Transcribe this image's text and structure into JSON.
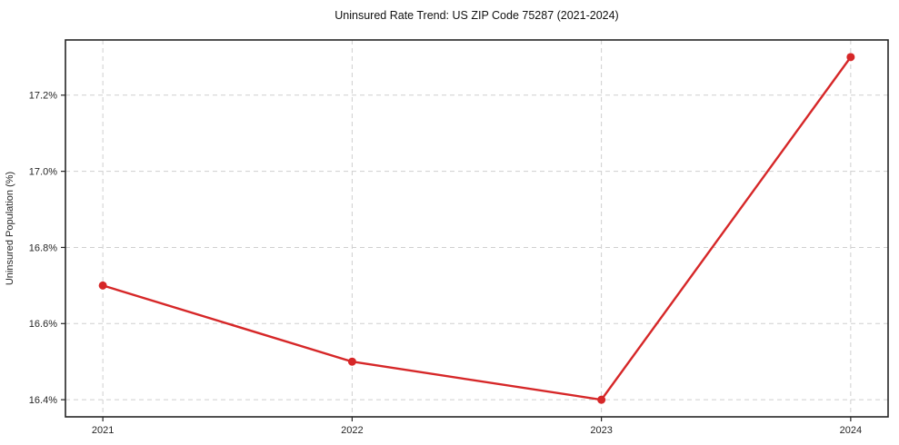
{
  "chart_data": {
    "type": "line",
    "title": "Uninsured Rate Trend: US ZIP Code 75287 (2021-2024)",
    "xlabel": "",
    "ylabel": "Uninsured Population (%)",
    "categories": [
      "2021",
      "2022",
      "2023",
      "2024"
    ],
    "x": [
      2021,
      2022,
      2023,
      2024
    ],
    "series": [
      {
        "name": "Uninsured Population (%)",
        "values": [
          16.7,
          16.5,
          16.4,
          17.3
        ]
      }
    ],
    "yticks": [
      16.4,
      16.6,
      16.8,
      17.0,
      17.2
    ],
    "ytick_labels": [
      "16.4%",
      "16.6%",
      "16.8%",
      "17.0%",
      "17.2%"
    ],
    "xlim": [
      2020.85,
      2024.15
    ],
    "ylim": [
      16.355,
      17.345
    ],
    "grid": true,
    "grid_style": "dashed",
    "legend_position": "none",
    "colors": {
      "line": "#d62728",
      "marker": "#d62728",
      "grid": "#cfcfcf",
      "axis": "#262626",
      "background": "#ffffff"
    }
  }
}
